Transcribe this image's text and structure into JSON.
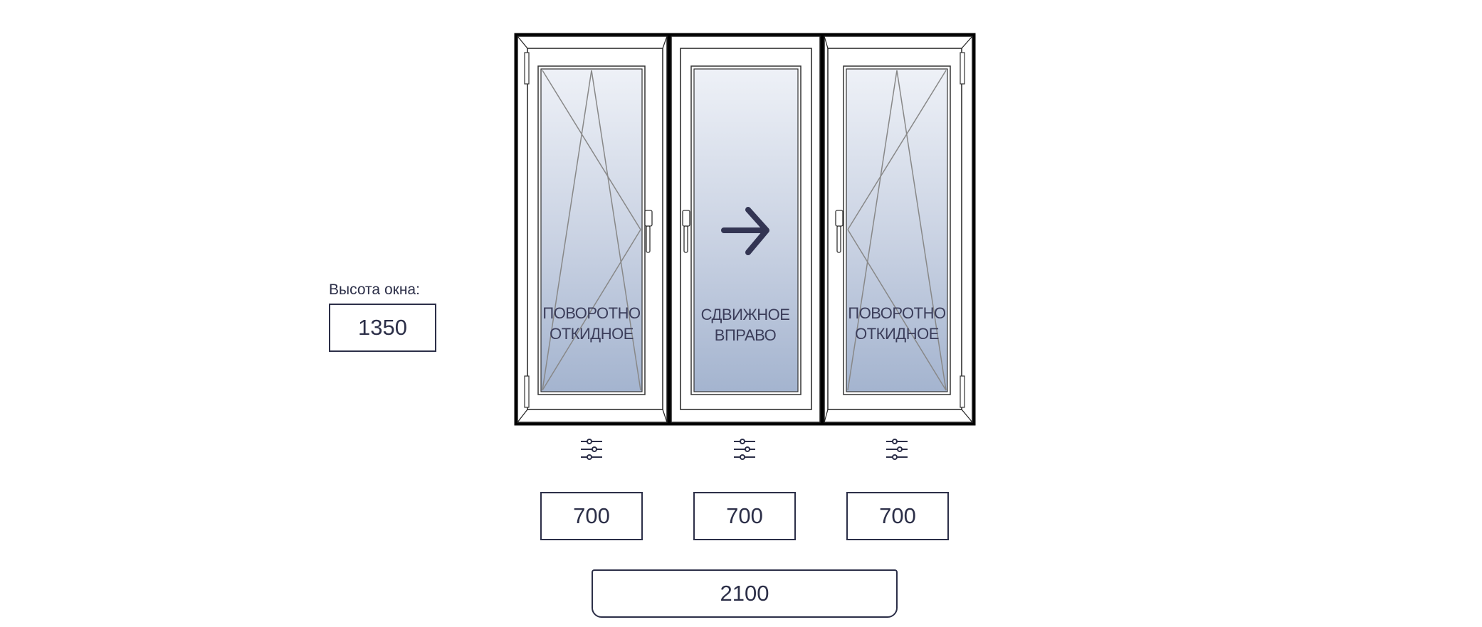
{
  "window": {
    "height_label": "Высота окна:",
    "height_value": "1350",
    "total_width": "2100"
  },
  "sashes": [
    {
      "type": "tilt-turn",
      "caption_line1": "ПОВОРОТНО",
      "caption_line2": "ОТКИДНОЕ",
      "width": "700",
      "hinges": "left",
      "handle": "right",
      "icon": "sliders-icon"
    },
    {
      "type": "sliding-right",
      "caption_line1": "СДВИЖНОЕ",
      "caption_line2": "ВПРАВО",
      "width": "700",
      "handle": "left",
      "icon": "sliders-icon",
      "arrow": "arrow-right-icon"
    },
    {
      "type": "tilt-turn",
      "caption_line1": "ПОВОРОТНО",
      "caption_line2": "ОТКИДНОЕ",
      "width": "700",
      "hinges": "right",
      "handle": "left",
      "icon": "sliders-icon"
    }
  ],
  "colors": {
    "frame": "#000000",
    "ink": "#2c2f48",
    "glass_top": "#eef1f7",
    "glass_bottom": "#a4b4cf"
  }
}
